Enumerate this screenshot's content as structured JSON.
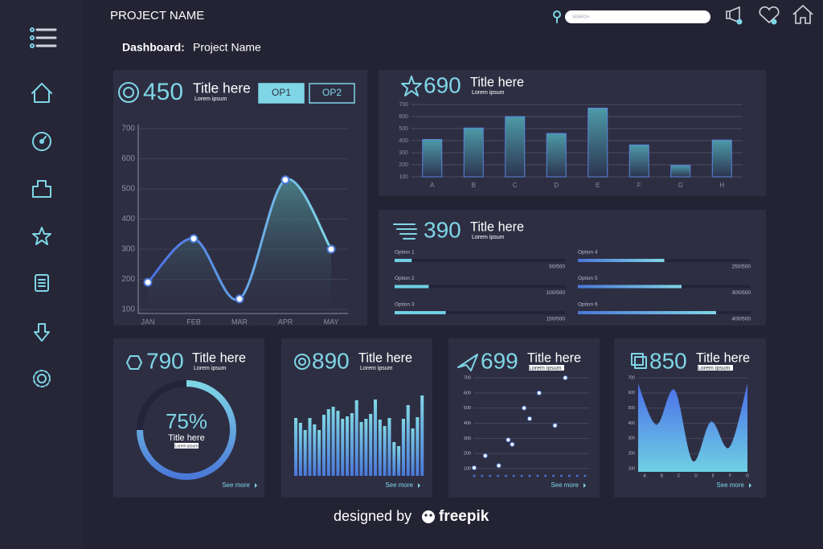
{
  "header": {
    "project_name": "PROJECT NAME",
    "search_placeholder": "SEARCH"
  },
  "breadcrumb": {
    "label": "Dashboard:",
    "name": "Project Name"
  },
  "panels": [
    {
      "stat": 450,
      "title": "Title here",
      "subtitle": "Lorem ipsum",
      "buttons": [
        "OP1",
        "OP2"
      ],
      "chart": {
        "type": "area-line",
        "categories": [
          "JAN",
          "FEB",
          "MAR",
          "APR",
          "MAY"
        ],
        "values": [
          190,
          335,
          135,
          530,
          300
        ],
        "ylim": [
          100,
          700
        ],
        "yticks": [
          100,
          200,
          300,
          400,
          500,
          600,
          700
        ]
      }
    },
    {
      "stat": 690,
      "title": "Title here",
      "subtitle": "Lorem ipsum",
      "chart": {
        "type": "bar",
        "categories": [
          "A",
          "B",
          "C",
          "D",
          "E",
          "F",
          "G",
          "H"
        ],
        "values": [
          410,
          505,
          600,
          460,
          670,
          365,
          195,
          405
        ],
        "ylim": [
          100,
          700
        ],
        "yticks": [
          100,
          200,
          300,
          400,
          500,
          600,
          700
        ]
      }
    },
    {
      "stat": 390,
      "title": "Title here",
      "subtitle": "Lorem ipsum",
      "options": [
        {
          "name": "Option 1",
          "value": 50,
          "max": 500,
          "label": "50/500"
        },
        {
          "name": "Option 2",
          "value": 100,
          "max": 500,
          "label": "100/500"
        },
        {
          "name": "Option 3",
          "value": 150,
          "max": 500,
          "label": "150/500"
        },
        {
          "name": "Option 4",
          "value": 250,
          "max": 500,
          "label": "250/500"
        },
        {
          "name": "Option 5",
          "value": 300,
          "max": 500,
          "label": "300/500"
        },
        {
          "name": "Option 6",
          "value": 400,
          "max": 500,
          "label": "400/500"
        }
      ]
    },
    {
      "stat": 790,
      "title": "Title here",
      "subtitle": "Lorem ipsum",
      "chart": {
        "type": "donut",
        "value": 75,
        "value_label": "75%",
        "title": "Title here",
        "subtitle": "Lorem ipsum"
      },
      "link": "See more"
    },
    {
      "stat": 890,
      "title": "Title here",
      "subtitle": "Lorem ipsum",
      "chart": {
        "type": "bar",
        "values": [
          72,
          66,
          57,
          72,
          64,
          57,
          76,
          83,
          86,
          81,
          71,
          74,
          78,
          94,
          67,
          71,
          77,
          95,
          70,
          62,
          72,
          42,
          37,
          71,
          88,
          59,
          73,
          100
        ],
        "ylim": [
          0,
          100
        ]
      },
      "link": "See more"
    },
    {
      "stat": 699,
      "title": "Title here",
      "subtitle": "Lorem ipsum",
      "chart": {
        "type": "scatter",
        "x": [
          0,
          1.4,
          3.1,
          4.3,
          4.8,
          6.3,
          7,
          8.2,
          10.2,
          11.5
        ],
        "values": [
          105,
          185,
          120,
          290,
          260,
          500,
          430,
          600,
          385,
          700
        ],
        "xlim": [
          0,
          14
        ],
        "xticks": [
          0,
          1,
          2,
          3,
          4,
          5,
          6,
          7,
          8,
          9,
          10,
          11,
          12,
          13,
          14
        ],
        "ylim": [
          100,
          700
        ],
        "yticks": [
          100,
          200,
          300,
          400,
          500,
          600,
          700
        ]
      },
      "link": "See more"
    },
    {
      "stat": 850,
      "title": "Title here",
      "subtitle": "Lorem ipsum",
      "chart": {
        "type": "area",
        "categories": [
          "A",
          "B",
          "C",
          "D",
          "E",
          "F",
          "G"
        ],
        "values": [
          660,
          390,
          620,
          150,
          410,
          240,
          660
        ],
        "ylim": [
          100,
          700
        ],
        "yticks": [
          100,
          200,
          300,
          400,
          500,
          600,
          700
        ]
      },
      "link": "See more"
    }
  ],
  "footer": {
    "text": "designed by",
    "brand": "freepik"
  }
}
